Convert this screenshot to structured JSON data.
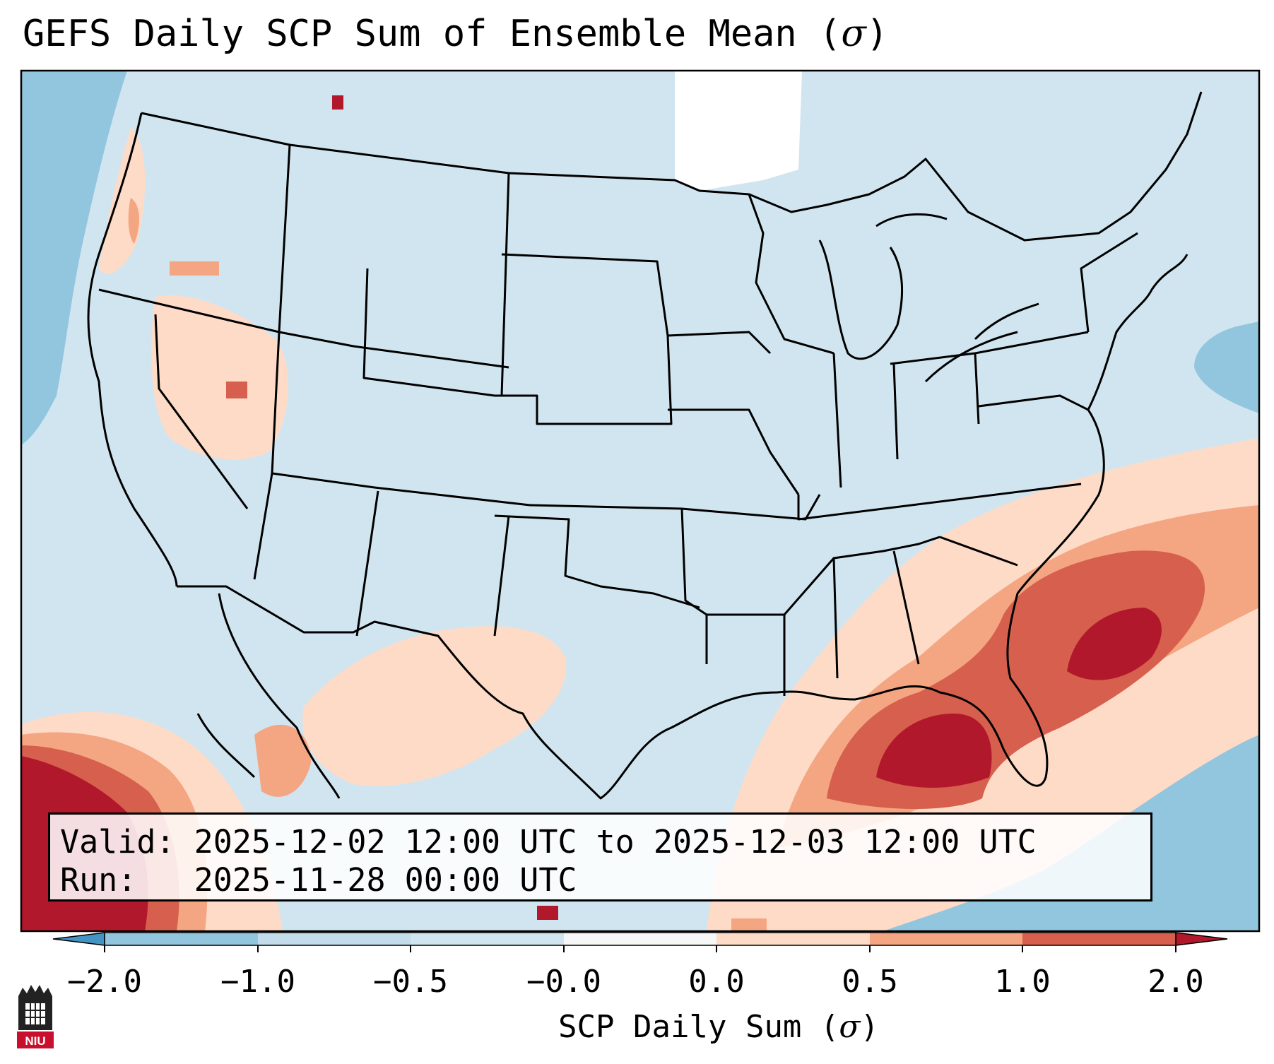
{
  "title": {
    "text": "GEFS Daily SCP Sum of Ensemble Mean (",
    "symbol": "σ",
    "close": ")"
  },
  "info": {
    "valid_label": "Valid:",
    "valid_value": "2025-12-02 12:00 UTC to 2025-12-03 12:00 UTC",
    "run_label": "Run:",
    "run_value": "2025-11-28 00:00 UTC"
  },
  "colorbar": {
    "label": "SCP Daily Sum (",
    "symbol": "σ",
    "close": ")",
    "ticks": [
      "−2.0",
      "−1.0",
      "−0.5",
      "−0.0",
      "0.0",
      "0.5",
      "1.0",
      "2.0"
    ],
    "colors": [
      "#92c5de",
      "#c3dcec",
      "#d1e5f0",
      "#f7f7f7",
      "#fddbc7",
      "#f4a582",
      "#d6604d"
    ],
    "extend_low": "#4393c3",
    "extend_high": "#b2182b"
  },
  "logo": {
    "text": "NIU"
  }
}
